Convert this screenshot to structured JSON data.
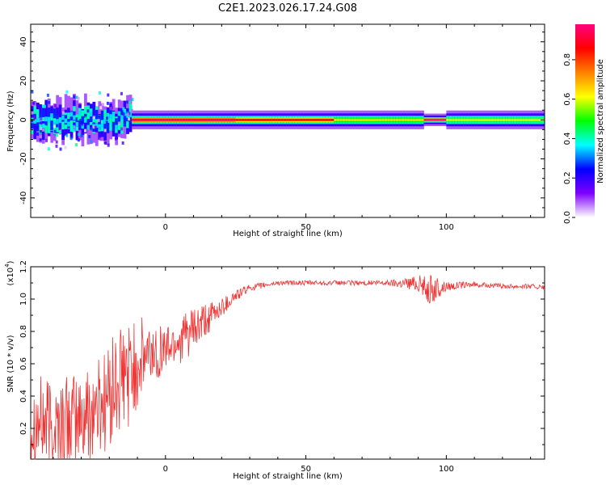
{
  "title": "C2E1.2023.026.17.24.G08",
  "colorbar": {
    "label": "Normalized spectral amplitude",
    "ticks": [
      "0.0",
      "0.2",
      "0.4",
      "0.6",
      "0.8"
    ],
    "tick_values": [
      0.0,
      0.2,
      0.4,
      0.6,
      0.8
    ],
    "range": [
      0,
      0.98
    ],
    "colormap": [
      "#ffffff",
      "#7f00ff",
      "#0000ff",
      "#00ffff",
      "#00ff00",
      "#ffff00",
      "#ff8000",
      "#ff0000",
      "#ff0080"
    ]
  },
  "chart_data": [
    {
      "type": "heatmap",
      "title": "",
      "xlabel": "Height of straight line (km)",
      "ylabel": "Frequency (Hz)",
      "xlim": [
        -48,
        135
      ],
      "ylim": [
        -50,
        49
      ],
      "x_ticks": [
        0,
        50,
        100
      ],
      "x_tick_labels": [
        "0",
        "50",
        "100"
      ],
      "y_ticks": [
        -40,
        -20,
        0,
        20,
        40
      ],
      "y_tick_labels": [
        "-40",
        "-20",
        "0",
        "20",
        "40"
      ],
      "description_values": {
        "band_center_hz": 0,
        "segments": [
          {
            "x_start": -48,
            "x_end": -12,
            "amplitude": 0.35,
            "half_width_hz": 6
          },
          {
            "x_start": -12,
            "x_end": 25,
            "amplitude": 0.95,
            "half_width_hz": 3
          },
          {
            "x_start": 25,
            "x_end": 60,
            "amplitude": 0.85,
            "half_width_hz": 3
          },
          {
            "x_start": 60,
            "x_end": 92,
            "amplitude": 0.65,
            "half_width_hz": 3
          },
          {
            "x_start": 92,
            "x_end": 100,
            "amplitude": 0.95,
            "half_width_hz": 2
          },
          {
            "x_start": 100,
            "x_end": 135,
            "amplitude": 0.6,
            "half_width_hz": 3
          }
        ]
      }
    },
    {
      "type": "line",
      "title": "",
      "xlabel": "Height of straight line (km)",
      "ylabel": "SNR (10 * v/v)",
      "y_multiplier_label": "(x10",
      "y_multiplier_exp": "4",
      "xlim": [
        -48,
        135
      ],
      "ylim": [
        0.01,
        1.2
      ],
      "x_ticks": [
        0,
        50,
        100
      ],
      "x_tick_labels": [
        "0",
        "50",
        "100"
      ],
      "y_ticks": [
        0.2,
        0.4,
        0.6,
        0.8,
        1.0,
        1.2
      ],
      "y_tick_labels": [
        "0.2",
        "0.4",
        "0.6",
        "0.8",
        "1.0",
        "1.2"
      ],
      "series": [
        {
          "color": "#ee3333",
          "x": [
            -48,
            -40,
            -30,
            -20,
            -15,
            -10,
            -5,
            0,
            5,
            10,
            15,
            20,
            25,
            30,
            40,
            50,
            60,
            70,
            80,
            90,
            95,
            100,
            110,
            120,
            130,
            135
          ],
          "y": [
            0.25,
            0.22,
            0.25,
            0.4,
            0.5,
            0.6,
            0.66,
            0.7,
            0.75,
            0.8,
            0.87,
            0.95,
            1.02,
            1.07,
            1.1,
            1.1,
            1.1,
            1.1,
            1.1,
            1.1,
            1.05,
            1.08,
            1.09,
            1.08,
            1.08,
            1.07
          ],
          "noise_amplitude": [
            0.3,
            0.3,
            0.3,
            0.35,
            0.35,
            0.3,
            0.2,
            0.15,
            0.15,
            0.15,
            0.1,
            0.06,
            0.04,
            0.02,
            0.015,
            0.015,
            0.015,
            0.015,
            0.02,
            0.05,
            0.1,
            0.03,
            0.015,
            0.015,
            0.015,
            0.015
          ]
        }
      ]
    }
  ]
}
